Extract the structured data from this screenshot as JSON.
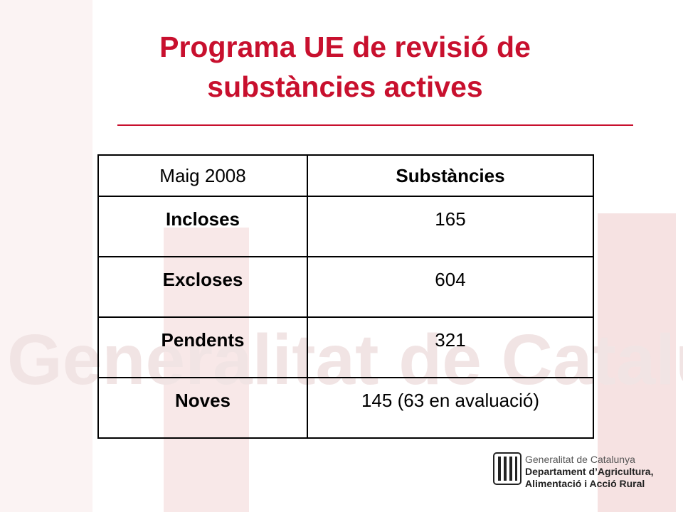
{
  "header": {
    "title": [
      "Programa UE de revisió de",
      "substàncies actives"
    ]
  },
  "table": {
    "header": [
      "Maig 2008",
      "Substàncies"
    ],
    "rows": [
      [
        "Incloses",
        "165"
      ],
      [
        "Excloses",
        "604"
      ],
      [
        "Pendents",
        "321"
      ],
      [
        "Noves",
        "145 (63 en avaluació)"
      ]
    ]
  },
  "footer": {
    "logo": [
      "Generalitat de Catalunya",
      "Departament d’Agricultura,",
      "Alimentació i Acció Rural"
    ]
  },
  "watermark": "Generalitat de Catalunya"
}
